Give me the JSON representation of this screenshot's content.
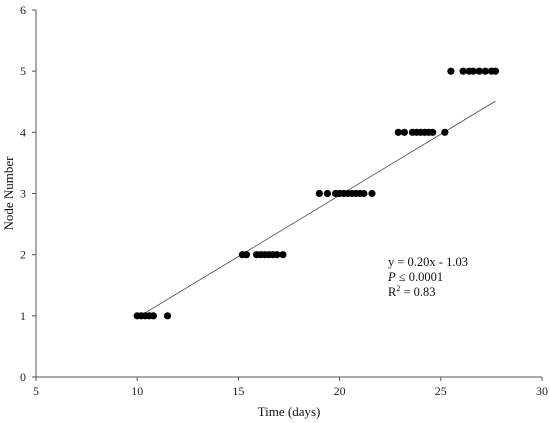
{
  "chart_data": {
    "type": "scatter",
    "title": "",
    "xlabel": "Time (days)",
    "ylabel": "Node Number",
    "xlim": [
      5,
      30
    ],
    "ylim": [
      0,
      6
    ],
    "xticks": [
      "5",
      "10",
      "15",
      "20",
      "25",
      "30"
    ],
    "yticks": [
      "0",
      "1",
      "2",
      "3",
      "4",
      "5",
      "6"
    ],
    "grid": false,
    "marker_color": "#000000",
    "series": [
      {
        "points": [
          [
            10.0,
            1
          ],
          [
            10.2,
            1
          ],
          [
            10.4,
            1
          ],
          [
            10.6,
            1
          ],
          [
            10.8,
            1
          ],
          [
            11.5,
            1
          ],
          [
            15.2,
            2
          ],
          [
            15.4,
            2
          ],
          [
            15.9,
            2
          ],
          [
            16.1,
            2
          ],
          [
            16.3,
            2
          ],
          [
            16.5,
            2
          ],
          [
            16.7,
            2
          ],
          [
            16.9,
            2
          ],
          [
            17.2,
            2
          ],
          [
            19.0,
            3
          ],
          [
            19.4,
            3
          ],
          [
            19.8,
            3
          ],
          [
            20.0,
            3
          ],
          [
            20.2,
            3
          ],
          [
            20.4,
            3
          ],
          [
            20.6,
            3
          ],
          [
            20.8,
            3
          ],
          [
            21.0,
            3
          ],
          [
            21.2,
            3
          ],
          [
            21.6,
            3
          ],
          [
            22.9,
            4
          ],
          [
            23.2,
            4
          ],
          [
            23.6,
            4
          ],
          [
            23.8,
            4
          ],
          [
            24.0,
            4
          ],
          [
            24.2,
            4
          ],
          [
            24.4,
            4
          ],
          [
            24.6,
            4
          ],
          [
            25.2,
            4
          ],
          [
            25.5,
            5
          ],
          [
            26.1,
            5
          ],
          [
            26.4,
            5
          ],
          [
            26.6,
            5
          ],
          [
            26.9,
            5
          ],
          [
            27.2,
            5
          ],
          [
            27.5,
            5
          ],
          [
            27.7,
            5
          ]
        ]
      }
    ],
    "trendline": {
      "slope": 0.2,
      "intercept": -1.03,
      "x_range": [
        10,
        27.7
      ]
    },
    "annotation": {
      "equation": "y = 0.20x - 1.03",
      "p_symbol": "P",
      "p_value": " ≤ 0.0001",
      "r2_prefix": "R",
      "r2_sup": "2",
      "r2_value": " = 0.83"
    }
  }
}
